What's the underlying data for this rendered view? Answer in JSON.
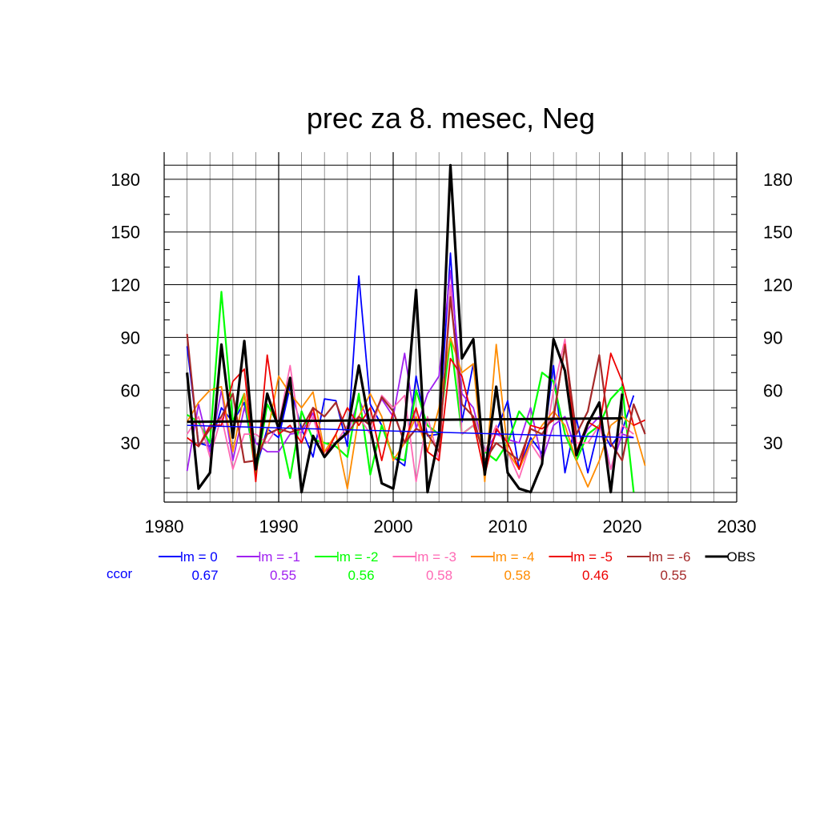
{
  "chart_data": {
    "type": "line",
    "title": "prec za 8. mesec, Neg",
    "xlabel": "",
    "ylabel": "",
    "xlim": [
      1980,
      2030
    ],
    "ylim": [
      1.8,
      188
    ],
    "x_ticks": [
      "1980",
      "1990",
      "2000",
      "2010",
      "2020",
      "2030"
    ],
    "y_ticks": [
      "30",
      "60",
      "90",
      "120",
      "150",
      "180"
    ],
    "grid": true,
    "legend_position": "bottom",
    "ccor_label": "ccor",
    "series": [
      {
        "name": "lm = 0",
        "color": "#0000ff",
        "ccor": "0.67",
        "width": 1.8,
        "x": [
          1982,
          1983,
          1984,
          1985,
          1986,
          1987,
          1988,
          1989,
          1990,
          1991,
          1992,
          1993,
          1994,
          1995,
          1996,
          1997,
          1998,
          1999,
          2000,
          2001,
          2002,
          2003,
          2004,
          2005,
          2006,
          2007,
          2008,
          2009,
          2010,
          2011,
          2012,
          2013,
          2014,
          2015,
          2016,
          2017,
          2018,
          2019,
          2020,
          2021
        ],
        "y": [
          85,
          30,
          28,
          50,
          42,
          53,
          15,
          38,
          33,
          62,
          38,
          22,
          55,
          54,
          28,
          125,
          52,
          40,
          22,
          17,
          68,
          34,
          35,
          138,
          42,
          75,
          18,
          36,
          54,
          15,
          33,
          24,
          74,
          13,
          44,
          13,
          40,
          28,
          37,
          57
        ],
        "trend": [
          40,
          33
        ]
      },
      {
        "name": "lm = -1",
        "color": "#a020f0",
        "ccor": "0.55",
        "width": 1.8,
        "x": [
          1982,
          1983,
          1984,
          1985,
          1986,
          1987,
          1988,
          1989,
          1990,
          1991,
          1992,
          1993,
          1994,
          1995,
          1996,
          1997,
          1998,
          1999,
          2000,
          2001,
          2002,
          2003,
          2004,
          2005,
          2006,
          2007,
          2008,
          2009,
          2010,
          2011,
          2012,
          2013,
          2014,
          2015,
          2016,
          2017,
          2018,
          2019,
          2020,
          2021
        ],
        "y": [
          14,
          52,
          25,
          60,
          20,
          50,
          30,
          25,
          25,
          35,
          36,
          47,
          25,
          30,
          35,
          55,
          40,
          55,
          45,
          81,
          38,
          58,
          68,
          128,
          58,
          50,
          25,
          35,
          32,
          30,
          50,
          20,
          40,
          45,
          25,
          38,
          45,
          15,
          35,
          33
        ]
      },
      {
        "name": "lm = -2",
        "color": "#00ff00",
        "ccor": "0.56",
        "width": 2.2,
        "x": [
          1982,
          1983,
          1984,
          1985,
          1986,
          1987,
          1988,
          1989,
          1990,
          1991,
          1992,
          1993,
          1994,
          1995,
          1996,
          1997,
          1998,
          1999,
          2000,
          2001,
          2002,
          2003,
          2004,
          2005,
          2006,
          2007,
          2008,
          2009,
          2010,
          2011,
          2012,
          2013,
          2014,
          2015,
          2016,
          2017,
          2018,
          2019,
          2020,
          2021
        ],
        "y": [
          46,
          42,
          30,
          116,
          42,
          58,
          12,
          52,
          40,
          10,
          48,
          32,
          30,
          28,
          22,
          58,
          12,
          40,
          22,
          20,
          60,
          40,
          35,
          90,
          35,
          40,
          25,
          20,
          30,
          48,
          40,
          70,
          65,
          35,
          20,
          35,
          40,
          55,
          62,
          2
        ]
      },
      {
        "name": "lm = -3",
        "color": "#ff69b4",
        "ccor": "0.58",
        "width": 1.8,
        "x": [
          1982,
          1983,
          1984,
          1985,
          1986,
          1987,
          1988,
          1989,
          1990,
          1991,
          1992,
          1993,
          1994,
          1995,
          1996,
          1997,
          1998,
          1999,
          2000,
          2001,
          2002,
          2003,
          2004,
          2005,
          2006,
          2007,
          2008,
          2009,
          2010,
          2011,
          2012,
          2013,
          2014,
          2015,
          2016,
          2017,
          2018,
          2019,
          2020,
          2021
        ],
        "y": [
          35,
          45,
          22,
          45,
          15,
          35,
          35,
          30,
          40,
          74,
          30,
          45,
          22,
          30,
          40,
          45,
          35,
          57,
          50,
          57,
          8,
          45,
          20,
          120,
          35,
          40,
          25,
          40,
          25,
          10,
          30,
          20,
          60,
          89,
          30,
          30,
          40,
          15,
          40,
          35
        ]
      },
      {
        "name": "lm = -4",
        "color": "#ff8c00",
        "ccor": "0.58",
        "width": 1.8,
        "x": [
          1982,
          1983,
          1984,
          1985,
          1986,
          1987,
          1988,
          1989,
          1990,
          1991,
          1992,
          1993,
          1994,
          1995,
          1996,
          1997,
          1998,
          1999,
          2000,
          2001,
          2002,
          2003,
          2004,
          2005,
          2006,
          2007,
          2008,
          2009,
          2010,
          2011,
          2012,
          2013,
          2014,
          2015,
          2016,
          2017,
          2018,
          2019,
          2020,
          2021,
          2022
        ],
        "y": [
          42,
          53,
          60,
          62,
          25,
          58,
          22,
          35,
          68,
          58,
          50,
          59,
          25,
          35,
          4,
          45,
          58,
          45,
          20,
          30,
          45,
          25,
          50,
          90,
          70,
          75,
          8,
          86,
          25,
          15,
          30,
          40,
          48,
          40,
          20,
          5,
          20,
          40,
          45,
          40,
          17
        ]
      },
      {
        "name": "lm = -5",
        "color": "#ee0000",
        "ccor": "0.46",
        "width": 1.8,
        "x": [
          1982,
          1983,
          1984,
          1985,
          1986,
          1987,
          1988,
          1989,
          1990,
          1991,
          1992,
          1993,
          1994,
          1995,
          1996,
          1997,
          1998,
          1999,
          2000,
          2001,
          2002,
          2003,
          2004,
          2005,
          2006,
          2007,
          2008,
          2009,
          2010,
          2011,
          2012,
          2013,
          2014,
          2015,
          2016,
          2017,
          2018,
          2019,
          2020,
          2021,
          2022
        ],
        "y": [
          33,
          28,
          40,
          40,
          65,
          72,
          8,
          80,
          35,
          40,
          30,
          50,
          22,
          35,
          50,
          40,
          50,
          20,
          48,
          30,
          50,
          25,
          20,
          78,
          68,
          42,
          12,
          38,
          30,
          15,
          40,
          38,
          43,
          86,
          25,
          42,
          38,
          81,
          65,
          40,
          43
        ]
      },
      {
        "name": "lm = -6",
        "color": "#a52a2a",
        "ccor": "0.55",
        "width": 2.2,
        "x": [
          1982,
          1983,
          1984,
          1985,
          1986,
          1987,
          1988,
          1989,
          1990,
          1991,
          1992,
          1993,
          1994,
          1995,
          1996,
          1997,
          1998,
          1999,
          2000,
          2001,
          2002,
          2003,
          2004,
          2005,
          2006,
          2007,
          2008,
          2009,
          2010,
          2011,
          2012,
          2013,
          2014,
          2015,
          2016,
          2017,
          2018,
          2019,
          2020,
          2021,
          2022
        ],
        "y": [
          92,
          28,
          38,
          45,
          58,
          19,
          20,
          35,
          38,
          36,
          38,
          50,
          45,
          53,
          35,
          45,
          40,
          56,
          48,
          30,
          38,
          35,
          25,
          113,
          52,
          45,
          20,
          30,
          25,
          20,
          38,
          35,
          45,
          85,
          35,
          48,
          80,
          30,
          20,
          52,
          35
        ]
      },
      {
        "name": "OBS",
        "color": "#000000",
        "ccor": "",
        "width": 3.2,
        "x": [
          1982,
          1983,
          1984,
          1985,
          1986,
          1987,
          1988,
          1989,
          1990,
          1991,
          1992,
          1993,
          1994,
          1995,
          1996,
          1997,
          1998,
          1999,
          2000,
          2001,
          2002,
          2003,
          2004,
          2005,
          2006,
          2007,
          2008,
          2009,
          2010,
          2011,
          2012,
          2013,
          2014,
          2015,
          2016,
          2017,
          2018,
          2019,
          2020
        ],
        "y": [
          70,
          4,
          13,
          86,
          33,
          88,
          15,
          58,
          38,
          67,
          2,
          34,
          22,
          30,
          36,
          74,
          38,
          7,
          4,
          40,
          117,
          2,
          34,
          188,
          78,
          89,
          12,
          62,
          13,
          4,
          2,
          18,
          89,
          71,
          23,
          41,
          53,
          2,
          58
        ],
        "trend": [
          42,
          44
        ]
      }
    ]
  }
}
